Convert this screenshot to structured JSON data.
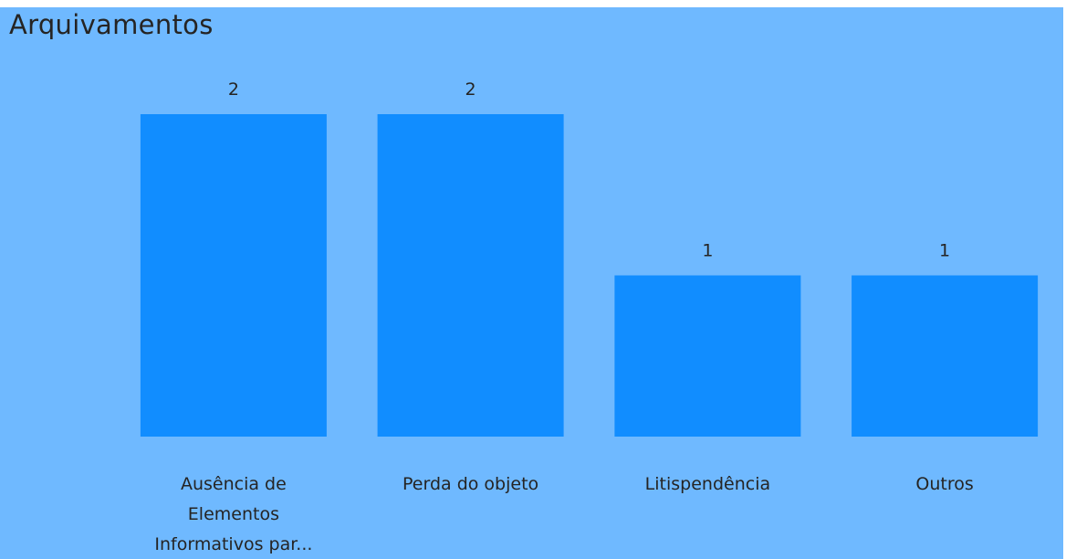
{
  "chart_data": {
    "type": "bar",
    "title": "Arquivamentos",
    "categories": [
      [
        "Ausência de",
        "Elementos",
        "Informativos par..."
      ],
      [
        "Perda do objeto"
      ],
      [
        "Litispendência"
      ],
      [
        "Outros"
      ]
    ],
    "values": [
      2,
      2,
      1,
      1
    ],
    "data_labels": [
      "2",
      "2",
      "1",
      "1"
    ],
    "ylim": [
      0,
      2
    ],
    "grid": false,
    "legend": "none",
    "xlabel": "",
    "ylabel": "",
    "colors": {
      "panel_background": "#6fb9ff",
      "bar": "#118dff",
      "text": "#252423"
    }
  }
}
